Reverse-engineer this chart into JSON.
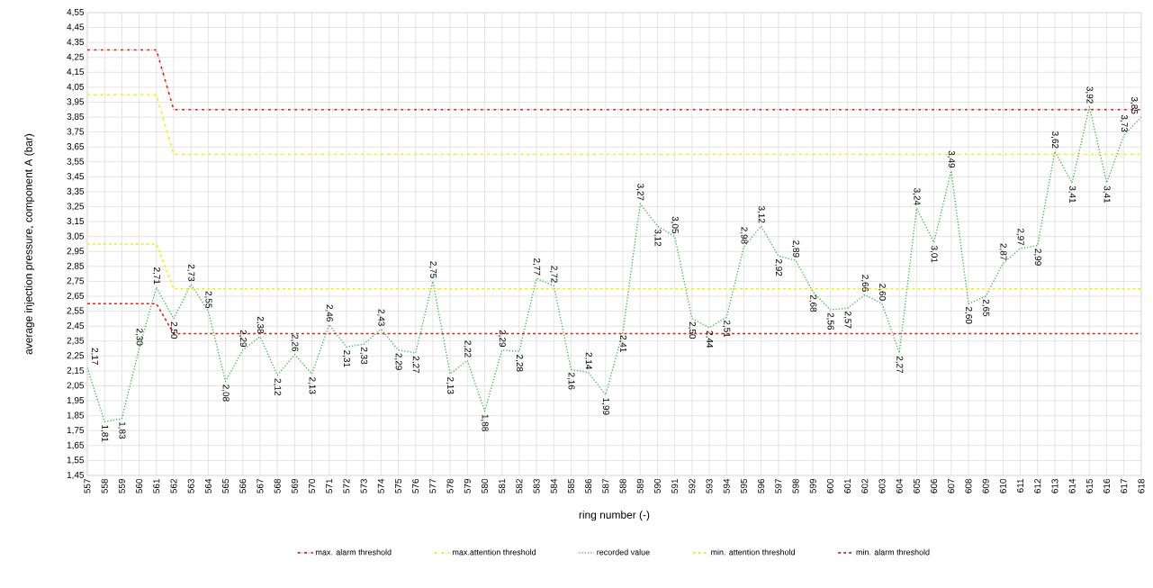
{
  "chart_data": {
    "type": "line",
    "xlabel": "ring number (-)",
    "ylabel": "average injection pressure, component A (bar)",
    "categories": [
      "557",
      "558",
      "559",
      "560",
      "561",
      "562",
      "563",
      "564",
      "565",
      "566",
      "567",
      "568",
      "569",
      "570",
      "571",
      "572",
      "573",
      "574",
      "575",
      "576",
      "577",
      "578",
      "579",
      "580",
      "581",
      "582",
      "583",
      "584",
      "585",
      "586",
      "587",
      "588",
      "589",
      "590",
      "591",
      "592",
      "593",
      "594",
      "595",
      "596",
      "597",
      "598",
      "599",
      "600",
      "601",
      "602",
      "603",
      "604",
      "605",
      "606",
      "607",
      "608",
      "609",
      "610",
      "611",
      "612",
      "613",
      "614",
      "615",
      "616",
      "617",
      "618"
    ],
    "series": [
      {
        "name": "max. alarm threshold",
        "color": "#e0201b",
        "line_style": "dashdot",
        "values": [
          4.3,
          4.3,
          4.3,
          4.3,
          4.3,
          3.9,
          3.9,
          3.9,
          3.9,
          3.9,
          3.9,
          3.9,
          3.9,
          3.9,
          3.9,
          3.9,
          3.9,
          3.9,
          3.9,
          3.9,
          3.9,
          3.9,
          3.9,
          3.9,
          3.9,
          3.9,
          3.9,
          3.9,
          3.9,
          3.9,
          3.9,
          3.9,
          3.9,
          3.9,
          3.9,
          3.9,
          3.9,
          3.9,
          3.9,
          3.9,
          3.9,
          3.9,
          3.9,
          3.9,
          3.9,
          3.9,
          3.9,
          3.9,
          3.9,
          3.9,
          3.9,
          3.9,
          3.9,
          3.9,
          3.9,
          3.9,
          3.9,
          3.9,
          3.9,
          3.9,
          3.9,
          3.9
        ]
      },
      {
        "name": "max.attention threshold",
        "color": "#f2ec1a",
        "line_style": "dashdot",
        "values": [
          4.0,
          4.0,
          4.0,
          4.0,
          4.0,
          3.6,
          3.6,
          3.6,
          3.6,
          3.6,
          3.6,
          3.6,
          3.6,
          3.6,
          3.6,
          3.6,
          3.6,
          3.6,
          3.6,
          3.6,
          3.6,
          3.6,
          3.6,
          3.6,
          3.6,
          3.6,
          3.6,
          3.6,
          3.6,
          3.6,
          3.6,
          3.6,
          3.6,
          3.6,
          3.6,
          3.6,
          3.6,
          3.6,
          3.6,
          3.6,
          3.6,
          3.6,
          3.6,
          3.6,
          3.6,
          3.6,
          3.6,
          3.6,
          3.6,
          3.6,
          3.6,
          3.6,
          3.6,
          3.6,
          3.6,
          3.6,
          3.6,
          3.6,
          3.6,
          3.6,
          3.6,
          3.6
        ]
      },
      {
        "name": "recorded value",
        "color": "#3cb44b",
        "line_style": "dotted",
        "values": [
          2.17,
          1.81,
          1.83,
          2.3,
          2.71,
          2.5,
          2.73,
          2.55,
          2.08,
          2.29,
          2.38,
          2.12,
          2.26,
          2.13,
          2.46,
          2.31,
          2.33,
          2.43,
          2.29,
          2.27,
          2.75,
          2.13,
          2.22,
          1.88,
          2.29,
          2.28,
          2.77,
          2.72,
          2.16,
          2.14,
          1.99,
          2.41,
          3.27,
          3.12,
          3.05,
          2.5,
          2.44,
          2.51,
          2.98,
          3.12,
          2.92,
          2.89,
          2.68,
          2.56,
          2.57,
          2.66,
          2.6,
          2.27,
          3.24,
          3.01,
          3.49,
          2.6,
          2.65,
          2.87,
          2.97,
          2.99,
          3.62,
          3.41,
          3.92,
          3.41,
          3.73,
          3.85
        ],
        "value_labels": [
          "2,17",
          "1,81",
          "1,83",
          "2,30",
          "2,71",
          "2,50",
          "2,73",
          "2,55",
          "2,08",
          "2,29",
          "2,38",
          "2,12",
          "2,26",
          "2,13",
          "2,46",
          "2,31",
          "2,33",
          "2,43",
          "2,29",
          "2,27",
          "2,75",
          "2,13",
          "2,22",
          "1,88",
          "2,29",
          "2,28",
          "2,77",
          "2,72",
          "2,16",
          "2,14",
          "1,99",
          "2,41",
          "3,27",
          "3,12",
          "3,05",
          "2,50",
          "2,44",
          "2,51",
          "2,98",
          "3,12",
          "2,92",
          "2,89",
          "2,68",
          "2,56",
          "2,57",
          "2,66",
          "2,60",
          "2,27",
          "3,24",
          "3,01",
          "3,49",
          "2,60",
          "2,65",
          "2,87",
          "2,97",
          "2,99",
          "3,62",
          "3,41",
          "3,92",
          "3,41",
          "3,73",
          "3,85"
        ]
      },
      {
        "name": "min. attention threshold",
        "color": "#f2ec1a",
        "line_style": "dashed",
        "values": [
          3.0,
          3.0,
          3.0,
          3.0,
          3.0,
          2.7,
          2.7,
          2.7,
          2.7,
          2.7,
          2.7,
          2.7,
          2.7,
          2.7,
          2.7,
          2.7,
          2.7,
          2.7,
          2.7,
          2.7,
          2.7,
          2.7,
          2.7,
          2.7,
          2.7,
          2.7,
          2.7,
          2.7,
          2.7,
          2.7,
          2.7,
          2.7,
          2.7,
          2.7,
          2.7,
          2.7,
          2.7,
          2.7,
          2.7,
          2.7,
          2.7,
          2.7,
          2.7,
          2.7,
          2.7,
          2.7,
          2.7,
          2.7,
          2.7,
          2.7,
          2.7,
          2.7,
          2.7,
          2.7,
          2.7,
          2.7,
          2.7,
          2.7,
          2.7,
          2.7,
          2.7,
          2.7
        ]
      },
      {
        "name": "min. alarm threshold",
        "color": "#e0201b",
        "line_style": "dashed",
        "values": [
          2.6,
          2.6,
          2.6,
          2.6,
          2.6,
          2.4,
          2.4,
          2.4,
          2.4,
          2.4,
          2.4,
          2.4,
          2.4,
          2.4,
          2.4,
          2.4,
          2.4,
          2.4,
          2.4,
          2.4,
          2.4,
          2.4,
          2.4,
          2.4,
          2.4,
          2.4,
          2.4,
          2.4,
          2.4,
          2.4,
          2.4,
          2.4,
          2.4,
          2.4,
          2.4,
          2.4,
          2.4,
          2.4,
          2.4,
          2.4,
          2.4,
          2.4,
          2.4,
          2.4,
          2.4,
          2.4,
          2.4,
          2.4,
          2.4,
          2.4,
          2.4,
          2.4,
          2.4,
          2.4,
          2.4,
          2.4,
          2.4,
          2.4,
          2.4,
          2.4,
          2.4,
          2.4
        ]
      }
    ],
    "ylim": [
      1.45,
      4.55
    ],
    "yticks": [
      {
        "value": 1.45,
        "label": "1,45"
      },
      {
        "value": 1.55,
        "label": "1,55"
      },
      {
        "value": 1.65,
        "label": "1,65"
      },
      {
        "value": 1.75,
        "label": "1,75"
      },
      {
        "value": 1.85,
        "label": "1,85"
      },
      {
        "value": 1.95,
        "label": "1,95"
      },
      {
        "value": 2.05,
        "label": "2,05"
      },
      {
        "value": 2.15,
        "label": "2,15"
      },
      {
        "value": 2.25,
        "label": "2,25"
      },
      {
        "value": 2.35,
        "label": "2,35"
      },
      {
        "value": 2.45,
        "label": "2,45"
      },
      {
        "value": 2.55,
        "label": "2,55"
      },
      {
        "value": 2.65,
        "label": "2,65"
      },
      {
        "value": 2.75,
        "label": "2,75"
      },
      {
        "value": 2.85,
        "label": "2,85"
      },
      {
        "value": 2.95,
        "label": "2,95"
      },
      {
        "value": 3.05,
        "label": "3,05"
      },
      {
        "value": 3.15,
        "label": "3,15"
      },
      {
        "value": 3.25,
        "label": "3,25"
      },
      {
        "value": 3.35,
        "label": "3,35"
      },
      {
        "value": 3.45,
        "label": "3,45"
      },
      {
        "value": 3.55,
        "label": "3,55"
      },
      {
        "value": 3.65,
        "label": "3,65"
      },
      {
        "value": 3.75,
        "label": "3,75"
      },
      {
        "value": 3.85,
        "label": "3,85"
      },
      {
        "value": 3.95,
        "label": "3,95"
      },
      {
        "value": 4.05,
        "label": "4,05"
      },
      {
        "value": 4.15,
        "label": "4,15"
      },
      {
        "value": 4.25,
        "label": "4,25"
      },
      {
        "value": 4.35,
        "label": "4,35"
      },
      {
        "value": 4.45,
        "label": "4,45"
      },
      {
        "value": 4.55,
        "label": "4,55"
      }
    ],
    "grid": true,
    "legend": "bottom",
    "marker": "none"
  }
}
